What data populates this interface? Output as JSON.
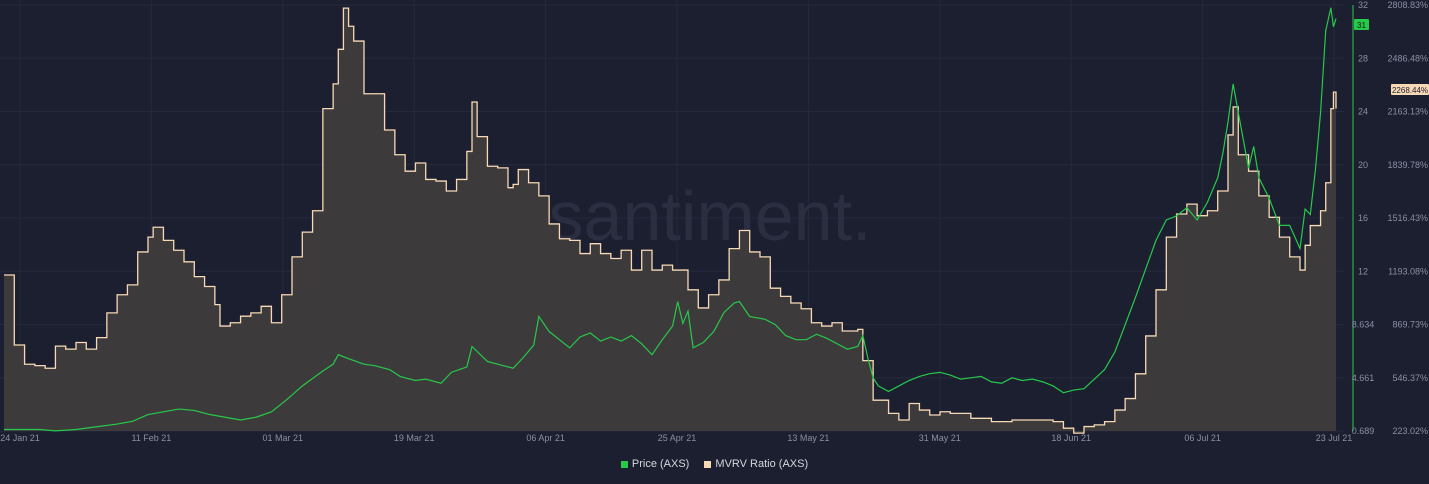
{
  "colors": {
    "background": "#1c1f30",
    "grid": "#262a3d",
    "price": "#26c94a",
    "mvrv_line": "#f8d9b5",
    "mvrv_fill": "#3d3a3c",
    "axis_text": "#8a8fa3",
    "watermark": "#2a2e40"
  },
  "watermark": "santiment.",
  "chart_data": {
    "type": "line",
    "x_tick_labels": [
      "24 Jan 21",
      "11 Feb 21",
      "01 Mar 21",
      "19 Mar 21",
      "06 Apr 21",
      "25 Apr 21",
      "13 May 21",
      "31 May 21",
      "18 Jun 21",
      "06 Jul 21",
      "23 Jul 21"
    ],
    "price_axis_ticks": [
      "32",
      "28",
      "24",
      "20",
      "16",
      "12",
      "8.634",
      "4.661",
      "0.689"
    ],
    "mvrv_axis_ticks": [
      "2808.83%",
      "2486.48%",
      "2163.13%",
      "1839.78%",
      "1516.43%",
      "1193.08%",
      "869.73%",
      "546.37%",
      "223.02%"
    ],
    "price_axis_range": [
      0.689,
      32
    ],
    "mvrv_axis_range": [
      223.02,
      2808.83
    ],
    "last_price_label": "31",
    "last_mvrv_label": "2268.44%",
    "series": [
      {
        "name": "Price (AXS)",
        "axis": "right-inner",
        "color": "#26c94a",
        "points": [
          [
            0,
            0.8
          ],
          [
            7,
            0.8
          ],
          [
            10,
            0.7
          ],
          [
            14,
            0.8
          ],
          [
            18,
            1.0
          ],
          [
            22,
            1.2
          ],
          [
            25,
            1.4
          ],
          [
            28,
            1.9
          ],
          [
            31,
            2.1
          ],
          [
            34,
            2.3
          ],
          [
            37,
            2.2
          ],
          [
            40,
            1.9
          ],
          [
            43,
            1.7
          ],
          [
            46,
            1.5
          ],
          [
            49,
            1.7
          ],
          [
            52,
            2.1
          ],
          [
            55,
            3.0
          ],
          [
            58,
            4.0
          ],
          [
            62,
            5.1
          ],
          [
            64,
            5.6
          ],
          [
            65,
            6.3
          ],
          [
            67,
            6.0
          ],
          [
            70,
            5.6
          ],
          [
            72,
            5.5
          ],
          [
            75,
            5.2
          ],
          [
            77,
            4.7
          ],
          [
            80,
            4.4
          ],
          [
            82,
            4.5
          ],
          [
            85,
            4.2
          ],
          [
            87,
            5.0
          ],
          [
            90,
            5.4
          ],
          [
            91,
            6.9
          ],
          [
            94,
            5.8
          ],
          [
            97,
            5.5
          ],
          [
            99,
            5.3
          ],
          [
            101,
            6.1
          ],
          [
            103,
            7.0
          ],
          [
            104,
            9.1
          ],
          [
            106,
            8.0
          ],
          [
            108,
            7.4
          ],
          [
            110,
            6.8
          ],
          [
            112,
            7.6
          ],
          [
            114,
            7.9
          ],
          [
            116,
            7.3
          ],
          [
            118,
            7.6
          ],
          [
            120,
            7.3
          ],
          [
            122,
            7.7
          ],
          [
            124,
            7.1
          ],
          [
            126,
            6.3
          ],
          [
            128,
            7.4
          ],
          [
            130,
            8.4
          ],
          [
            131,
            10.2
          ],
          [
            132,
            8.6
          ],
          [
            133,
            9.5
          ],
          [
            134,
            6.8
          ],
          [
            136,
            7.2
          ],
          [
            138,
            8.0
          ],
          [
            140,
            9.4
          ],
          [
            142,
            10.1
          ],
          [
            143,
            10.2
          ],
          [
            145,
            9.1
          ],
          [
            148,
            8.9
          ],
          [
            150,
            8.5
          ],
          [
            152,
            7.7
          ],
          [
            154,
            7.4
          ],
          [
            156,
            7.4
          ],
          [
            158,
            7.8
          ],
          [
            160,
            7.5
          ],
          [
            162,
            7.1
          ],
          [
            164,
            6.7
          ],
          [
            166,
            6.9
          ],
          [
            167,
            7.7
          ],
          [
            168,
            6.0
          ],
          [
            169,
            4.6
          ],
          [
            170,
            4.0
          ],
          [
            172,
            3.6
          ],
          [
            174,
            4.0
          ],
          [
            176,
            4.4
          ],
          [
            178,
            4.7
          ],
          [
            180,
            4.9
          ],
          [
            182,
            5.0
          ],
          [
            184,
            4.8
          ],
          [
            186,
            4.5
          ],
          [
            188,
            4.6
          ],
          [
            190,
            4.7
          ],
          [
            192,
            4.3
          ],
          [
            194,
            4.2
          ],
          [
            196,
            4.6
          ],
          [
            198,
            4.4
          ],
          [
            200,
            4.5
          ],
          [
            202,
            4.3
          ],
          [
            204,
            4.0
          ],
          [
            206,
            3.5
          ],
          [
            208,
            3.7
          ],
          [
            210,
            3.8
          ],
          [
            212,
            4.5
          ],
          [
            214,
            5.2
          ],
          [
            216,
            6.5
          ],
          [
            218,
            8.5
          ],
          [
            220,
            10.5
          ],
          [
            222,
            12.6
          ],
          [
            224,
            14.7
          ],
          [
            226,
            16.2
          ],
          [
            228,
            16.5
          ],
          [
            230,
            17.1
          ],
          [
            232,
            16.2
          ],
          [
            234,
            17.5
          ],
          [
            236,
            19.3
          ],
          [
            237,
            21.1
          ],
          [
            238,
            23.4
          ],
          [
            239,
            26.2
          ],
          [
            240,
            24.1
          ],
          [
            242,
            20.0
          ],
          [
            243,
            21.6
          ],
          [
            244,
            19.3
          ],
          [
            246,
            17.8
          ],
          [
            248,
            15.8
          ],
          [
            250,
            15.8
          ],
          [
            252,
            14.1
          ],
          [
            253,
            17.0
          ],
          [
            254,
            16.6
          ],
          [
            255,
            19.9
          ],
          [
            256,
            24.1
          ],
          [
            257,
            30.1
          ],
          [
            258,
            31.8
          ],
          [
            258.5,
            30.4
          ],
          [
            259,
            31.0
          ]
        ]
      },
      {
        "name": "MVRV Ratio (AXS)",
        "axis": "right-outer",
        "color": "#f8d9b5",
        "points": [
          [
            0,
            1170
          ],
          [
            2,
            745
          ],
          [
            4,
            628
          ],
          [
            6,
            620
          ],
          [
            8,
            604
          ],
          [
            10,
            738
          ],
          [
            12,
            720
          ],
          [
            14,
            760
          ],
          [
            16,
            720
          ],
          [
            18,
            790
          ],
          [
            20,
            940
          ],
          [
            22,
            1050
          ],
          [
            24,
            1110
          ],
          [
            26,
            1310
          ],
          [
            28,
            1400
          ],
          [
            29,
            1460
          ],
          [
            31,
            1380
          ],
          [
            33,
            1320
          ],
          [
            35,
            1250
          ],
          [
            37,
            1160
          ],
          [
            39,
            1100
          ],
          [
            41,
            990
          ],
          [
            42,
            860
          ],
          [
            44,
            880
          ],
          [
            46,
            920
          ],
          [
            48,
            940
          ],
          [
            50,
            980
          ],
          [
            52,
            880
          ],
          [
            54,
            1050
          ],
          [
            56,
            1280
          ],
          [
            58,
            1430
          ],
          [
            60,
            1560
          ],
          [
            62,
            2180
          ],
          [
            64,
            2330
          ],
          [
            65,
            2540
          ],
          [
            66,
            2790
          ],
          [
            67,
            2680
          ],
          [
            68,
            2590
          ],
          [
            70,
            2270
          ],
          [
            72,
            2270
          ],
          [
            74,
            2050
          ],
          [
            76,
            1900
          ],
          [
            78,
            1800
          ],
          [
            80,
            1850
          ],
          [
            82,
            1750
          ],
          [
            84,
            1740
          ],
          [
            86,
            1680
          ],
          [
            88,
            1750
          ],
          [
            90,
            1920
          ],
          [
            91,
            2220
          ],
          [
            92,
            2010
          ],
          [
            94,
            1830
          ],
          [
            96,
            1820
          ],
          [
            98,
            1700
          ],
          [
            99,
            1720
          ],
          [
            100,
            1810
          ],
          [
            102,
            1730
          ],
          [
            104,
            1650
          ],
          [
            106,
            1480
          ],
          [
            108,
            1390
          ],
          [
            110,
            1380
          ],
          [
            112,
            1300
          ],
          [
            114,
            1360
          ],
          [
            116,
            1300
          ],
          [
            118,
            1270
          ],
          [
            120,
            1320
          ],
          [
            122,
            1200
          ],
          [
            124,
            1320
          ],
          [
            126,
            1200
          ],
          [
            128,
            1230
          ],
          [
            130,
            1200
          ],
          [
            133,
            1080
          ],
          [
            135,
            970
          ],
          [
            137,
            1050
          ],
          [
            139,
            1140
          ],
          [
            141,
            1330
          ],
          [
            143,
            1440
          ],
          [
            145,
            1310
          ],
          [
            147,
            1280
          ],
          [
            149,
            1090
          ],
          [
            151,
            1040
          ],
          [
            153,
            1000
          ],
          [
            155,
            965
          ],
          [
            157,
            880
          ],
          [
            159,
            860
          ],
          [
            161,
            880
          ],
          [
            163,
            830
          ],
          [
            166,
            840
          ],
          [
            167,
            650
          ],
          [
            169,
            410
          ],
          [
            172,
            330
          ],
          [
            174,
            290
          ],
          [
            176,
            390
          ],
          [
            178,
            350
          ],
          [
            180,
            320
          ],
          [
            182,
            340
          ],
          [
            184,
            330
          ],
          [
            188,
            300
          ],
          [
            192,
            280
          ],
          [
            196,
            290
          ],
          [
            200,
            290
          ],
          [
            204,
            280
          ],
          [
            206,
            240
          ],
          [
            208,
            210
          ],
          [
            210,
            250
          ],
          [
            212,
            260
          ],
          [
            214,
            280
          ],
          [
            216,
            350
          ],
          [
            218,
            420
          ],
          [
            220,
            570
          ],
          [
            222,
            800
          ],
          [
            224,
            1080
          ],
          [
            226,
            1400
          ],
          [
            228,
            1540
          ],
          [
            230,
            1600
          ],
          [
            232,
            1530
          ],
          [
            234,
            1560
          ],
          [
            236,
            1680
          ],
          [
            238,
            2020
          ],
          [
            239,
            2190
          ],
          [
            240,
            1900
          ],
          [
            242,
            1800
          ],
          [
            244,
            1650
          ],
          [
            246,
            1520
          ],
          [
            248,
            1400
          ],
          [
            250,
            1280
          ],
          [
            252,
            1200
          ],
          [
            253,
            1350
          ],
          [
            254,
            1470
          ],
          [
            256,
            1560
          ],
          [
            257,
            1730
          ],
          [
            258,
            2180
          ],
          [
            258.5,
            2280
          ],
          [
            259,
            2180
          ]
        ]
      }
    ]
  },
  "legend": {
    "items": [
      {
        "label": "Price (AXS)",
        "color": "#26c94a"
      },
      {
        "label": "MVRV Ratio (AXS)",
        "color": "#f8d9b5"
      }
    ]
  }
}
